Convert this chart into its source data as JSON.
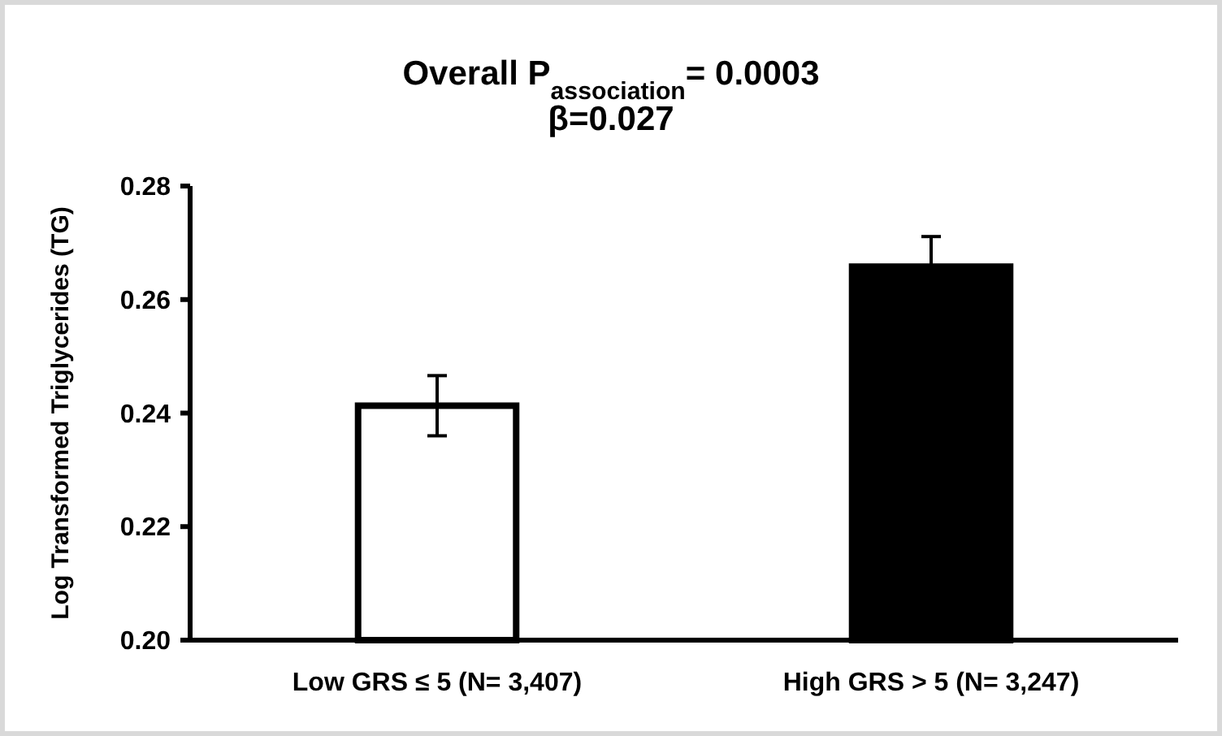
{
  "chart_data": {
    "type": "bar",
    "title": "Overall P$_{association}$= 0.0003",
    "subtitle": "β=0.027",
    "ylabel": "Log Transformed Triglycerides (TG)",
    "categories": [
      "Low GRS ≤ 5 (N= 3,407)",
      "High GRS > 5 (N= 3,247)"
    ],
    "values": [
      0.2413,
      0.2658
    ],
    "errors": [
      0.0053,
      0.0053
    ],
    "colors": [
      "#ffffff",
      "#000000"
    ],
    "ylim": [
      0.2,
      0.28
    ],
    "yticks": [
      {
        "value": 0.2,
        "label": "0.20"
      },
      {
        "value": 0.22,
        "label": "0.22"
      },
      {
        "value": 0.24,
        "label": "0.24"
      },
      {
        "value": 0.26,
        "label": "0.26"
      },
      {
        "value": 0.28,
        "label": "0.28"
      }
    ],
    "grid": false
  }
}
